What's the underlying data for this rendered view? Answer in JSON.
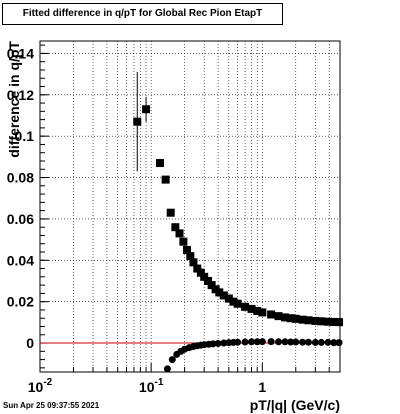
{
  "title": "Fitted difference in q/pT for Global Rec Pion EtapT",
  "timestamp": "Sun Apr 25 09:37:55 2021",
  "chart_data": {
    "type": "scatter",
    "title": "Fitted difference in q/pT for Global Rec Pion EtapT",
    "xlabel": "pT/|q| (GeV/c)",
    "ylabel": "difference in q/pT",
    "x_scale": "log",
    "xlim": [
      0.01,
      5
    ],
    "ylim": [
      -0.014,
      0.146
    ],
    "x_ticks": [
      {
        "value": 0.01,
        "label": "10^-2"
      },
      {
        "value": 0.1,
        "label": "10^-1"
      },
      {
        "value": 1,
        "label": "1"
      }
    ],
    "y_ticks": [
      {
        "value": 0,
        "label": "0"
      },
      {
        "value": 0.02,
        "label": "0.02"
      },
      {
        "value": 0.04,
        "label": "0.04"
      },
      {
        "value": 0.06,
        "label": "0.06"
      },
      {
        "value": 0.08,
        "label": "0.08"
      },
      {
        "value": 0.1,
        "label": "0.1"
      },
      {
        "value": 0.12,
        "label": "0.12"
      },
      {
        "value": 0.14,
        "label": "0.14"
      }
    ],
    "grid": true,
    "reference_line": {
      "y": 0,
      "color": "#cc0000"
    },
    "series": [
      {
        "marker": "square",
        "color": "#000000",
        "points": [
          {
            "x": 0.075,
            "y": 0.107,
            "err": 0.024
          },
          {
            "x": 0.09,
            "y": 0.113,
            "err": 0.006
          },
          {
            "x": 0.12,
            "y": 0.087
          },
          {
            "x": 0.135,
            "y": 0.079
          },
          {
            "x": 0.15,
            "y": 0.063
          },
          {
            "x": 0.165,
            "y": 0.056
          },
          {
            "x": 0.18,
            "y": 0.053
          },
          {
            "x": 0.195,
            "y": 0.049
          },
          {
            "x": 0.21,
            "y": 0.045
          },
          {
            "x": 0.225,
            "y": 0.042
          },
          {
            "x": 0.24,
            "y": 0.039
          },
          {
            "x": 0.26,
            "y": 0.036
          },
          {
            "x": 0.28,
            "y": 0.034
          },
          {
            "x": 0.3,
            "y": 0.032
          },
          {
            "x": 0.325,
            "y": 0.03
          },
          {
            "x": 0.35,
            "y": 0.028
          },
          {
            "x": 0.38,
            "y": 0.026
          },
          {
            "x": 0.41,
            "y": 0.0245
          },
          {
            "x": 0.45,
            "y": 0.023
          },
          {
            "x": 0.5,
            "y": 0.0215
          },
          {
            "x": 0.55,
            "y": 0.02
          },
          {
            "x": 0.6,
            "y": 0.019
          },
          {
            "x": 0.7,
            "y": 0.0175
          },
          {
            "x": 0.8,
            "y": 0.0165
          },
          {
            "x": 0.9,
            "y": 0.0155
          },
          {
            "x": 1.0,
            "y": 0.0148
          },
          {
            "x": 1.2,
            "y": 0.0138
          },
          {
            "x": 1.4,
            "y": 0.013
          },
          {
            "x": 1.6,
            "y": 0.0124
          },
          {
            "x": 1.8,
            "y": 0.012
          },
          {
            "x": 2.0,
            "y": 0.0117
          },
          {
            "x": 2.3,
            "y": 0.0113
          },
          {
            "x": 2.6,
            "y": 0.011
          },
          {
            "x": 3.0,
            "y": 0.0107
          },
          {
            "x": 3.4,
            "y": 0.0105
          },
          {
            "x": 3.9,
            "y": 0.0103
          },
          {
            "x": 4.4,
            "y": 0.0102
          },
          {
            "x": 4.9,
            "y": 0.0101
          }
        ]
      },
      {
        "marker": "circle",
        "color": "#000000",
        "points": [
          {
            "x": 0.14,
            "y": -0.0125
          },
          {
            "x": 0.155,
            "y": -0.008
          },
          {
            "x": 0.17,
            "y": -0.0055
          },
          {
            "x": 0.185,
            "y": -0.004
          },
          {
            "x": 0.2,
            "y": -0.003
          },
          {
            "x": 0.22,
            "y": -0.0022
          },
          {
            "x": 0.24,
            "y": -0.0017
          },
          {
            "x": 0.26,
            "y": -0.0013
          },
          {
            "x": 0.28,
            "y": -0.001
          },
          {
            "x": 0.3,
            "y": -0.0008
          },
          {
            "x": 0.33,
            "y": -0.0006
          },
          {
            "x": 0.36,
            "y": -0.0004
          },
          {
            "x": 0.4,
            "y": -0.0002
          },
          {
            "x": 0.45,
            "y": 0.0
          },
          {
            "x": 0.5,
            "y": 0.0002
          },
          {
            "x": 0.55,
            "y": 0.0003
          },
          {
            "x": 0.6,
            "y": 0.0004
          },
          {
            "x": 0.7,
            "y": 0.0005
          },
          {
            "x": 0.8,
            "y": 0.0006
          },
          {
            "x": 0.9,
            "y": 0.0006
          },
          {
            "x": 1.0,
            "y": 0.0007
          },
          {
            "x": 1.2,
            "y": 0.0007
          },
          {
            "x": 1.4,
            "y": 0.0006
          },
          {
            "x": 1.6,
            "y": 0.0006
          },
          {
            "x": 1.8,
            "y": 0.0005
          },
          {
            "x": 2.0,
            "y": 0.0005
          },
          {
            "x": 2.3,
            "y": 0.0004
          },
          {
            "x": 2.6,
            "y": 0.0004
          },
          {
            "x": 3.0,
            "y": 0.0003
          },
          {
            "x": 3.4,
            "y": 0.0003
          },
          {
            "x": 3.9,
            "y": 0.0003
          },
          {
            "x": 4.4,
            "y": 0.0002
          },
          {
            "x": 4.9,
            "y": 0.0002
          }
        ]
      }
    ]
  }
}
